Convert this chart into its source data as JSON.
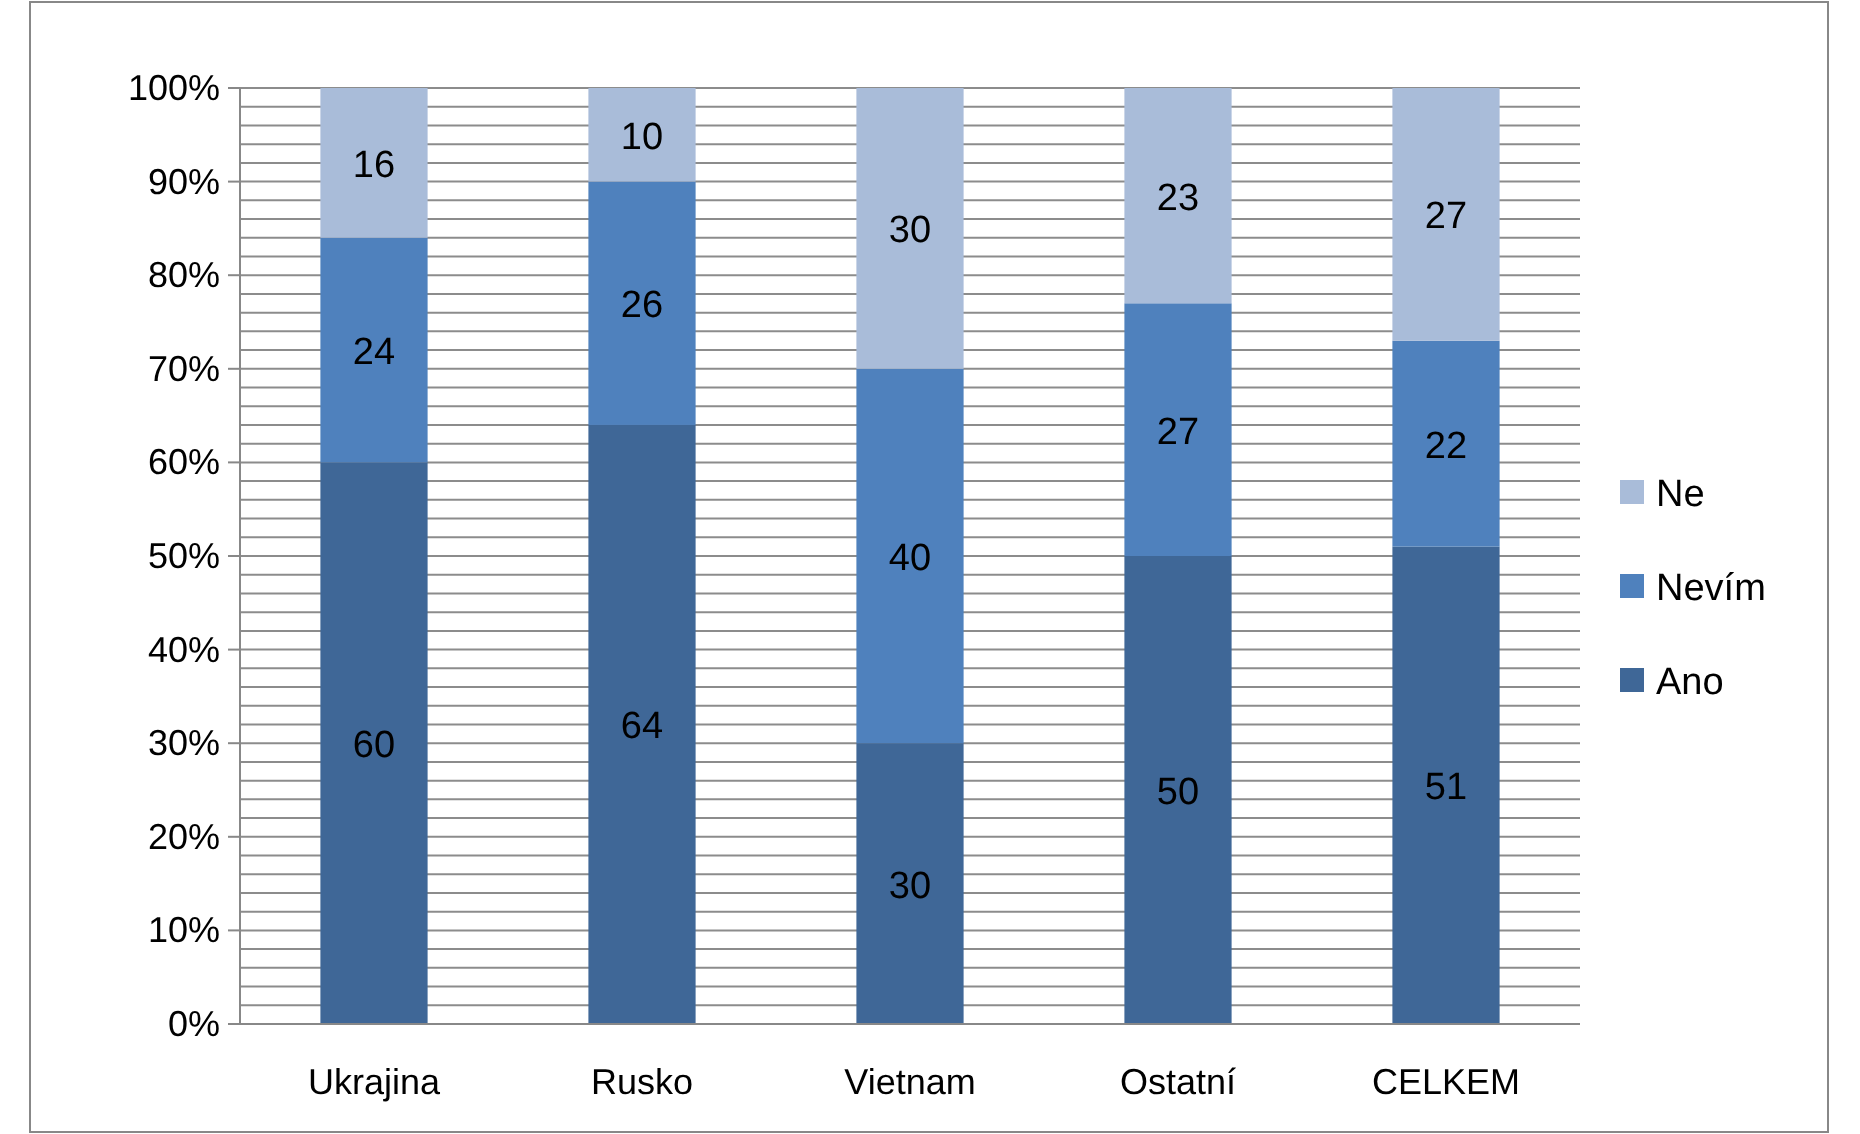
{
  "chart_data": {
    "type": "bar",
    "stacked": true,
    "categories": [
      "Ukrajina",
      "Rusko",
      "Vietnam",
      "Ostatní",
      "CELKEM"
    ],
    "series": [
      {
        "name": "Ano",
        "color": "#3f6797",
        "values": [
          60,
          64,
          30,
          50,
          51
        ]
      },
      {
        "name": "Nevím",
        "color": "#4f81bd",
        "values": [
          24,
          26,
          40,
          27,
          22
        ]
      },
      {
        "name": "Ne",
        "color": "#a9bcd9",
        "values": [
          16,
          10,
          30,
          23,
          27
        ]
      }
    ],
    "ylim": [
      0,
      100
    ],
    "yticks": [
      {
        "value": 0,
        "label": "0%"
      },
      {
        "value": 2,
        "label": null
      },
      {
        "value": 4,
        "label": null
      },
      {
        "value": 6,
        "label": null
      },
      {
        "value": 8,
        "label": null
      },
      {
        "value": 10,
        "label": "10%"
      },
      {
        "value": 12,
        "label": null
      },
      {
        "value": 14,
        "label": null
      },
      {
        "value": 16,
        "label": null
      },
      {
        "value": 18,
        "label": null
      },
      {
        "value": 20,
        "label": "20%"
      },
      {
        "value": 22,
        "label": null
      },
      {
        "value": 24,
        "label": null
      },
      {
        "value": 26,
        "label": null
      },
      {
        "value": 28,
        "label": null
      },
      {
        "value": 30,
        "label": "30%"
      },
      {
        "value": 32,
        "label": null
      },
      {
        "value": 34,
        "label": null
      },
      {
        "value": 36,
        "label": null
      },
      {
        "value": 38,
        "label": null
      },
      {
        "value": 40,
        "label": "40%"
      },
      {
        "value": 42,
        "label": null
      },
      {
        "value": 44,
        "label": null
      },
      {
        "value": 46,
        "label": null
      },
      {
        "value": 48,
        "label": null
      },
      {
        "value": 50,
        "label": "50%"
      },
      {
        "value": 52,
        "label": null
      },
      {
        "value": 54,
        "label": null
      },
      {
        "value": 56,
        "label": null
      },
      {
        "value": 58,
        "label": null
      },
      {
        "value": 60,
        "label": "60%"
      },
      {
        "value": 62,
        "label": null
      },
      {
        "value": 64,
        "label": null
      },
      {
        "value": 66,
        "label": null
      },
      {
        "value": 68,
        "label": null
      },
      {
        "value": 70,
        "label": "70%"
      },
      {
        "value": 72,
        "label": null
      },
      {
        "value": 74,
        "label": null
      },
      {
        "value": 76,
        "label": null
      },
      {
        "value": 78,
        "label": null
      },
      {
        "value": 80,
        "label": "80%"
      },
      {
        "value": 82,
        "label": null
      },
      {
        "value": 84,
        "label": null
      },
      {
        "value": 86,
        "label": null
      },
      {
        "value": 88,
        "label": null
      },
      {
        "value": 90,
        "label": "90%"
      },
      {
        "value": 92,
        "label": null
      },
      {
        "value": 94,
        "label": null
      },
      {
        "value": 96,
        "label": null
      },
      {
        "value": 98,
        "label": null
      },
      {
        "value": 100,
        "label": "100%"
      }
    ],
    "grid": "y",
    "legend": "right",
    "data_labels": true
  }
}
